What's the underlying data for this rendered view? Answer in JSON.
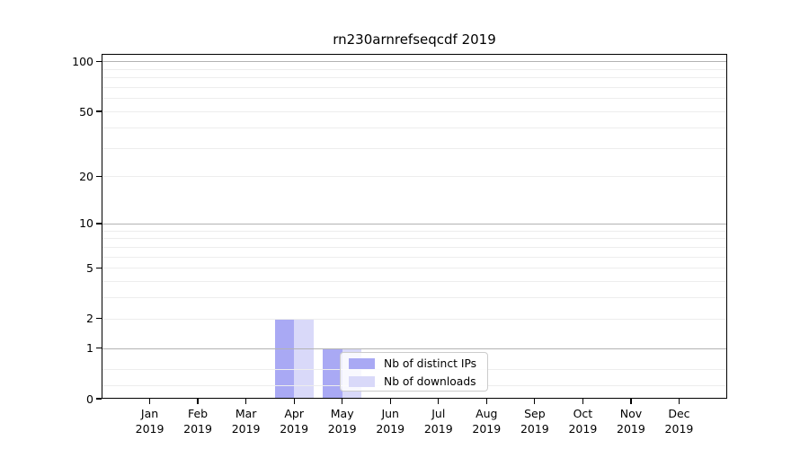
{
  "title": "rn230arnrefseqcdf 2019",
  "colors": {
    "distinct_ips": "#a9a9f4",
    "downloads": "#d9d9f9",
    "grid_major": "#b3b3b3",
    "grid_minor": "#ededed",
    "axis": "#000000",
    "legend_border": "#cccccc",
    "background": "#ffffff"
  },
  "legend": {
    "items": [
      {
        "label": "Nb of distinct IPs",
        "color_key": "distinct_ips"
      },
      {
        "label": "Nb of downloads",
        "color_key": "downloads"
      }
    ]
  },
  "chart_data": {
    "type": "bar",
    "title": "rn230arnrefseqcdf 2019",
    "categories": [
      "Jan",
      "Feb",
      "Mar",
      "Apr",
      "May",
      "Jun",
      "Jul",
      "Aug",
      "Sep",
      "Oct",
      "Nov",
      "Dec"
    ],
    "year_label": "2019",
    "series": [
      {
        "name": "Nb of distinct IPs",
        "color_key": "distinct_ips",
        "values": [
          0,
          0,
          0,
          2,
          1,
          0,
          0,
          0,
          0,
          0,
          0,
          0
        ]
      },
      {
        "name": "Nb of downloads",
        "color_key": "downloads",
        "values": [
          0,
          0,
          0,
          2,
          1,
          0,
          0,
          0,
          0,
          0,
          0,
          0
        ]
      }
    ],
    "y_scale": "log1p",
    "ylim": [
      0,
      111
    ],
    "y_ticks": [
      0,
      1,
      2,
      5,
      10,
      20,
      50,
      100
    ],
    "y_gridlines_major": [
      1,
      10,
      100
    ],
    "y_gridlines_minor": [
      0.2,
      0.5,
      2,
      3,
      4,
      5,
      6,
      7,
      8,
      9,
      20,
      30,
      40,
      50,
      60,
      70,
      80,
      90
    ],
    "grid": true,
    "legend_position": "inside lower-center"
  }
}
